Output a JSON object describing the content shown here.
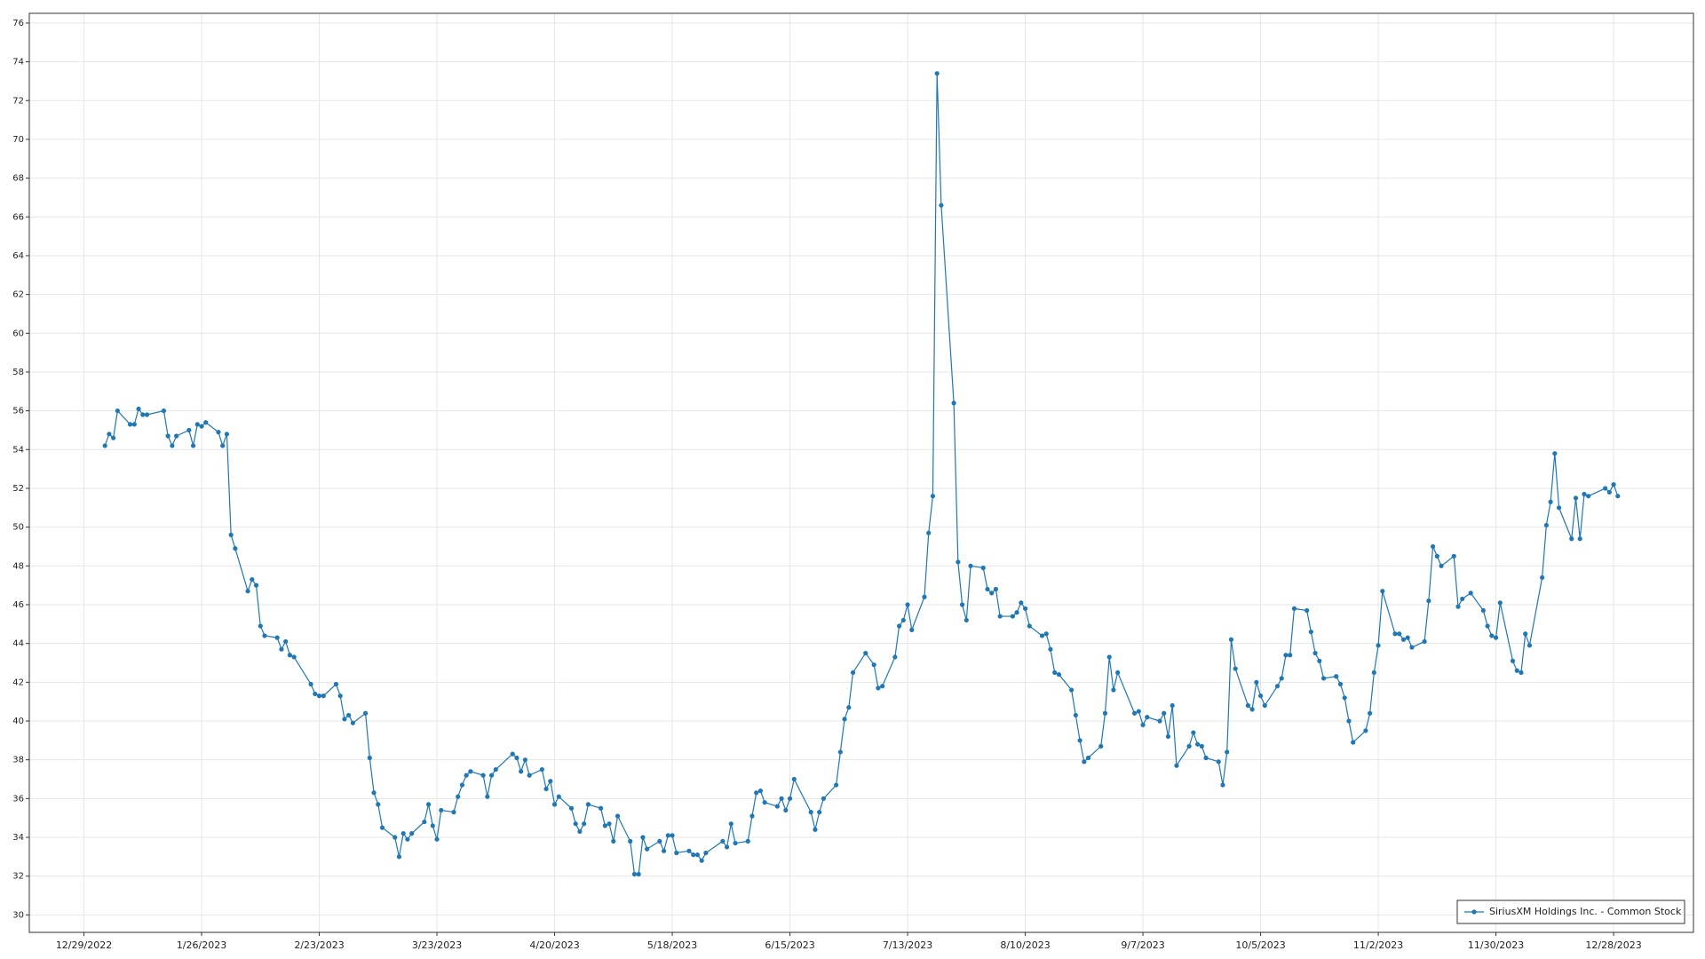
{
  "chart_data": {
    "type": "line",
    "x": [
      "1/3/2023",
      "1/4/2023",
      "1/5/2023",
      "1/6/2023",
      "1/9/2023",
      "1/10/2023",
      "1/11/2023",
      "1/12/2023",
      "1/13/2023",
      "1/17/2023",
      "1/18/2023",
      "1/19/2023",
      "1/20/2023",
      "1/23/2023",
      "1/24/2023",
      "1/25/2023",
      "1/26/2023",
      "1/27/2023",
      "1/30/2023",
      "1/31/2023",
      "2/1/2023",
      "2/2/2023",
      "2/3/2023",
      "2/6/2023",
      "2/7/2023",
      "2/8/2023",
      "2/9/2023",
      "2/10/2023",
      "2/13/2023",
      "2/14/2023",
      "2/15/2023",
      "2/16/2023",
      "2/17/2023",
      "2/21/2023",
      "2/22/2023",
      "2/23/2023",
      "2/24/2023",
      "2/27/2023",
      "2/28/2023",
      "3/1/2023",
      "3/2/2023",
      "3/3/2023",
      "3/6/2023",
      "3/7/2023",
      "3/8/2023",
      "3/9/2023",
      "3/10/2023",
      "3/13/2023",
      "3/14/2023",
      "3/15/2023",
      "3/16/2023",
      "3/17/2023",
      "3/20/2023",
      "3/21/2023",
      "3/22/2023",
      "3/23/2023",
      "3/24/2023",
      "3/27/2023",
      "3/28/2023",
      "3/29/2023",
      "3/30/2023",
      "3/31/2023",
      "4/3/2023",
      "4/4/2023",
      "4/5/2023",
      "4/6/2023",
      "4/10/2023",
      "4/11/2023",
      "4/12/2023",
      "4/13/2023",
      "4/14/2023",
      "4/17/2023",
      "4/18/2023",
      "4/19/2023",
      "4/20/2023",
      "4/21/2023",
      "4/24/2023",
      "4/25/2023",
      "4/26/2023",
      "4/27/2023",
      "4/28/2023",
      "5/1/2023",
      "5/2/2023",
      "5/3/2023",
      "5/4/2023",
      "5/5/2023",
      "5/8/2023",
      "5/9/2023",
      "5/10/2023",
      "5/11/2023",
      "5/12/2023",
      "5/15/2023",
      "5/16/2023",
      "5/17/2023",
      "5/18/2023",
      "5/19/2023",
      "5/22/2023",
      "5/23/2023",
      "5/24/2023",
      "5/25/2023",
      "5/26/2023",
      "5/30/2023",
      "5/31/2023",
      "6/1/2023",
      "6/2/2023",
      "6/5/2023",
      "6/6/2023",
      "6/7/2023",
      "6/8/2023",
      "6/9/2023",
      "6/12/2023",
      "6/13/2023",
      "6/14/2023",
      "6/15/2023",
      "6/16/2023",
      "6/20/2023",
      "6/21/2023",
      "6/22/2023",
      "6/23/2023",
      "6/26/2023",
      "6/27/2023",
      "6/28/2023",
      "6/29/2023",
      "6/30/2023",
      "7/3/2023",
      "7/5/2023",
      "7/6/2023",
      "7/7/2023",
      "7/10/2023",
      "7/11/2023",
      "7/12/2023",
      "7/13/2023",
      "7/14/2023",
      "7/17/2023",
      "7/18/2023",
      "7/19/2023",
      "7/20/2023",
      "7/21/2023",
      "7/24/2023",
      "7/25/2023",
      "7/26/2023",
      "7/27/2023",
      "7/28/2023",
      "7/31/2023",
      "8/1/2023",
      "8/2/2023",
      "8/3/2023",
      "8/4/2023",
      "8/7/2023",
      "8/8/2023",
      "8/9/2023",
      "8/10/2023",
      "8/11/2023",
      "8/14/2023",
      "8/15/2023",
      "8/16/2023",
      "8/17/2023",
      "8/18/2023",
      "8/21/2023",
      "8/22/2023",
      "8/23/2023",
      "8/24/2023",
      "8/25/2023",
      "8/28/2023",
      "8/29/2023",
      "8/30/2023",
      "8/31/2023",
      "9/1/2023",
      "9/5/2023",
      "9/6/2023",
      "9/7/2023",
      "9/8/2023",
      "9/11/2023",
      "9/12/2023",
      "9/13/2023",
      "9/14/2023",
      "9/15/2023",
      "9/18/2023",
      "9/19/2023",
      "9/20/2023",
      "9/21/2023",
      "9/22/2023",
      "9/25/2023",
      "9/26/2023",
      "9/27/2023",
      "9/28/2023",
      "9/29/2023",
      "10/2/2023",
      "10/3/2023",
      "10/4/2023",
      "10/5/2023",
      "10/6/2023",
      "10/9/2023",
      "10/10/2023",
      "10/11/2023",
      "10/12/2023",
      "10/13/2023",
      "10/16/2023",
      "10/17/2023",
      "10/18/2023",
      "10/19/2023",
      "10/20/2023",
      "10/23/2023",
      "10/24/2023",
      "10/25/2023",
      "10/26/2023",
      "10/27/2023",
      "10/30/2023",
      "10/31/2023",
      "11/1/2023",
      "11/2/2023",
      "11/3/2023",
      "11/6/2023",
      "11/7/2023",
      "11/8/2023",
      "11/9/2023",
      "11/10/2023",
      "11/13/2023",
      "11/14/2023",
      "11/15/2023",
      "11/16/2023",
      "11/17/2023",
      "11/20/2023",
      "11/21/2023",
      "11/22/2023",
      "11/24/2023",
      "11/27/2023",
      "11/28/2023",
      "11/29/2023",
      "11/30/2023",
      "12/1/2023",
      "12/4/2023",
      "12/5/2023",
      "12/6/2023",
      "12/7/2023",
      "12/8/2023",
      "12/11/2023",
      "12/12/2023",
      "12/13/2023",
      "12/14/2023",
      "12/15/2023",
      "12/18/2023",
      "12/19/2023",
      "12/20/2023",
      "12/21/2023",
      "12/22/2023",
      "12/26/2023",
      "12/27/2023",
      "12/28/2023",
      "12/29/2023"
    ],
    "series": [
      {
        "name": "SiriusXM Holdings Inc. - Common Stock",
        "color": "#1f77b4",
        "values": [
          54.2,
          54.8,
          54.6,
          56.0,
          55.3,
          55.3,
          56.1,
          55.8,
          55.8,
          56.0,
          54.7,
          54.2,
          54.7,
          55.0,
          54.2,
          55.3,
          55.2,
          55.4,
          54.9,
          54.2,
          54.8,
          49.6,
          48.9,
          46.7,
          47.3,
          47.0,
          44.9,
          44.4,
          44.3,
          43.7,
          44.1,
          43.4,
          43.3,
          41.9,
          41.4,
          41.3,
          41.3,
          41.9,
          41.3,
          40.1,
          40.3,
          39.9,
          40.4,
          38.1,
          36.3,
          35.7,
          34.5,
          34.0,
          33.0,
          34.2,
          33.9,
          34.2,
          34.8,
          35.7,
          34.6,
          33.9,
          35.4,
          35.3,
          36.1,
          36.7,
          37.2,
          37.4,
          37.2,
          36.1,
          37.2,
          37.5,
          38.3,
          38.1,
          37.4,
          38.0,
          37.2,
          37.5,
          36.5,
          36.9,
          35.7,
          36.1,
          35.5,
          34.7,
          34.3,
          34.7,
          35.7,
          35.5,
          34.6,
          34.7,
          33.8,
          35.1,
          33.8,
          32.1,
          32.1,
          34.0,
          33.4,
          33.8,
          33.3,
          34.1,
          34.1,
          33.2,
          33.3,
          33.1,
          33.1,
          32.8,
          33.2,
          33.8,
          33.5,
          34.7,
          33.7,
          33.8,
          35.1,
          36.3,
          36.4,
          35.8,
          35.6,
          36.0,
          35.4,
          36.0,
          37.0,
          35.3,
          34.4,
          35.3,
          36.0,
          36.7,
          38.4,
          40.1,
          40.7,
          42.5,
          43.5,
          42.9,
          41.7,
          41.8,
          43.3,
          44.9,
          45.2,
          46.0,
          44.7,
          46.4,
          49.7,
          51.6,
          73.4,
          66.6,
          56.4,
          48.2,
          46.0,
          45.2,
          48.0,
          47.9,
          46.8,
          46.6,
          46.8,
          45.4,
          45.4,
          45.6,
          46.1,
          45.8,
          44.9,
          44.4,
          44.5,
          43.7,
          42.5,
          42.4,
          41.6,
          40.3,
          39.0,
          37.9,
          38.1,
          38.7,
          40.4,
          43.3,
          41.6,
          42.5,
          40.4,
          40.5,
          39.8,
          40.2,
          40.0,
          40.4,
          39.2,
          40.8,
          37.7,
          38.7,
          39.4,
          38.8,
          38.7,
          38.1,
          37.9,
          36.7,
          38.4,
          44.2,
          42.7,
          40.8,
          40.6,
          42.0,
          41.3,
          40.8,
          41.8,
          42.2,
          43.4,
          43.4,
          45.8,
          45.7,
          44.6,
          43.5,
          43.1,
          42.2,
          42.3,
          41.9,
          41.2,
          40.0,
          38.9,
          39.5,
          40.4,
          42.5,
          43.9,
          46.7,
          44.5,
          44.5,
          44.2,
          44.3,
          43.8,
          44.1,
          46.2,
          49.0,
          48.5,
          48.0,
          48.5,
          45.9,
          46.3,
          46.6,
          45.7,
          44.9,
          44.4,
          44.3,
          46.1,
          43.1,
          42.6,
          42.5,
          44.5,
          43.9,
          47.4,
          50.1,
          51.3,
          53.8,
          51.0,
          49.4,
          51.5,
          49.4,
          51.7,
          51.6,
          52.0,
          51.8,
          52.2,
          51.6
        ]
      }
    ],
    "xlim": [
      "12/16/2022",
      "1/16/2024"
    ],
    "xticks": [
      "12/29/2022",
      "1/26/2023",
      "2/23/2023",
      "3/23/2023",
      "4/20/2023",
      "5/18/2023",
      "6/15/2023",
      "7/13/2023",
      "8/10/2023",
      "9/7/2023",
      "10/5/2023",
      "11/2/2023",
      "11/30/2023",
      "12/28/2023"
    ],
    "ylim": [
      29.1,
      76.5
    ],
    "yticks": [
      30,
      32,
      34,
      36,
      38,
      40,
      42,
      44,
      46,
      48,
      50,
      52,
      54,
      56,
      58,
      60,
      62,
      64,
      66,
      68,
      70,
      72,
      74,
      76
    ],
    "grid": true,
    "legend": "lower right"
  }
}
